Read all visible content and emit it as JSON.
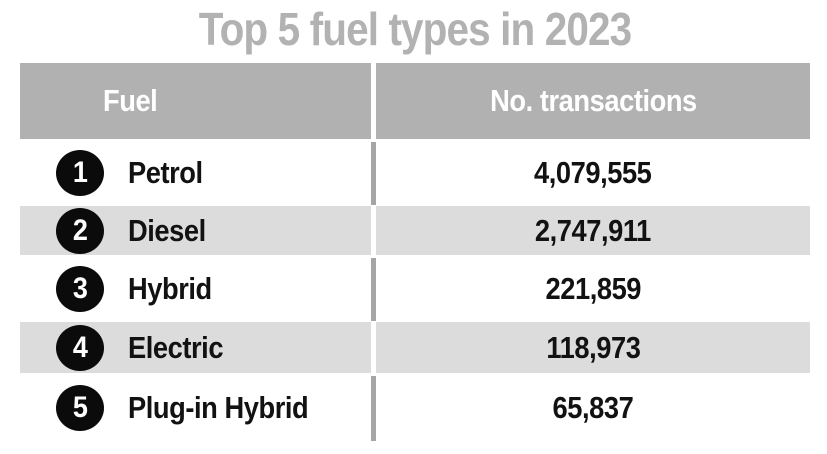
{
  "title": "Top 5 fuel types in 2023",
  "table": {
    "headers": {
      "fuel": "Fuel",
      "transactions": "No. transactions"
    },
    "rows": [
      {
        "rank": "1",
        "fuel": "Petrol",
        "transactions": "4,079,555"
      },
      {
        "rank": "2",
        "fuel": "Diesel",
        "transactions": "2,747,911"
      },
      {
        "rank": "3",
        "fuel": "Hybrid",
        "transactions": "221,859"
      },
      {
        "rank": "4",
        "fuel": "Electric",
        "transactions": "118,973"
      },
      {
        "rank": "5",
        "fuel": "Plug-in Hybrid",
        "transactions": "65,837"
      }
    ]
  },
  "colors": {
    "title_text": "#b2b2b2",
    "header_bg": "#b1b1b1",
    "header_text": "#ffffff",
    "row_alt_bg": "#dcdcdc",
    "divider_gray": "#a5a5a5",
    "rank_badge_bg": "#0b0b0b",
    "rank_badge_text": "#ffffff",
    "value_text": "#121212",
    "background": "#ffffff"
  },
  "chart_data": {
    "type": "table",
    "title": "Top 5 fuel types in 2023",
    "columns": [
      "Fuel",
      "No. transactions"
    ],
    "categories": [
      "Petrol",
      "Diesel",
      "Hybrid",
      "Electric",
      "Plug-in Hybrid"
    ],
    "values": [
      4079555,
      2747911,
      221859,
      118973,
      65837
    ],
    "ranks": [
      1,
      2,
      3,
      4,
      5
    ],
    "layout": "ranked table, alternating row shading, central column divider"
  }
}
